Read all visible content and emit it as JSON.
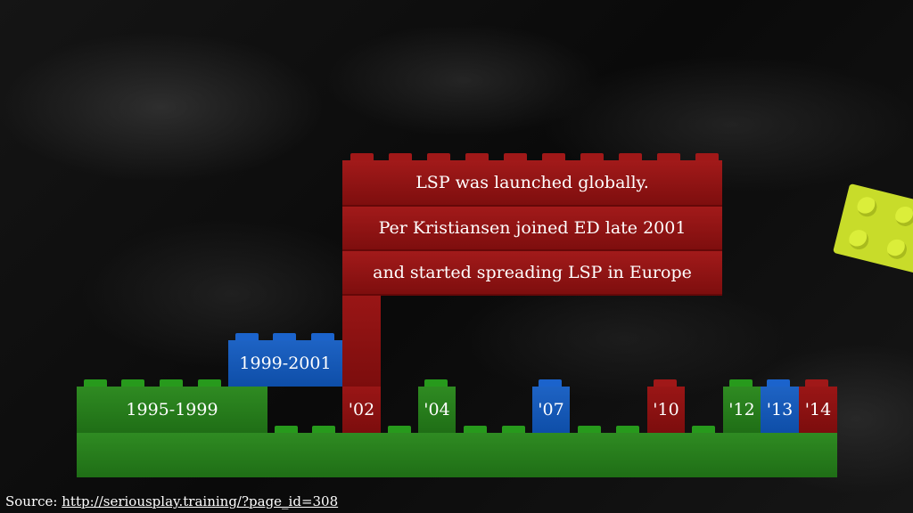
{
  "eras": {
    "first": "1995-1999",
    "second": "1999-2001"
  },
  "years": {
    "y02": "'02",
    "y04": "'04",
    "y07": "'07",
    "y10": "'10",
    "y12": "'12",
    "y13": "'13",
    "y14": "'14"
  },
  "callout": {
    "line1": "LSP was launched globally.",
    "line2": "Per Kristiansen joined ED late 2001",
    "line3": "and started spreading LSP in Europe"
  },
  "source": {
    "label": "Source:",
    "url": "http://seriousplay.training/?page_id=308"
  },
  "colors": {
    "green": "#2f8b22",
    "blue": "#1e63c4",
    "red": "#9a1616",
    "yellow": "#c8dc2a"
  }
}
